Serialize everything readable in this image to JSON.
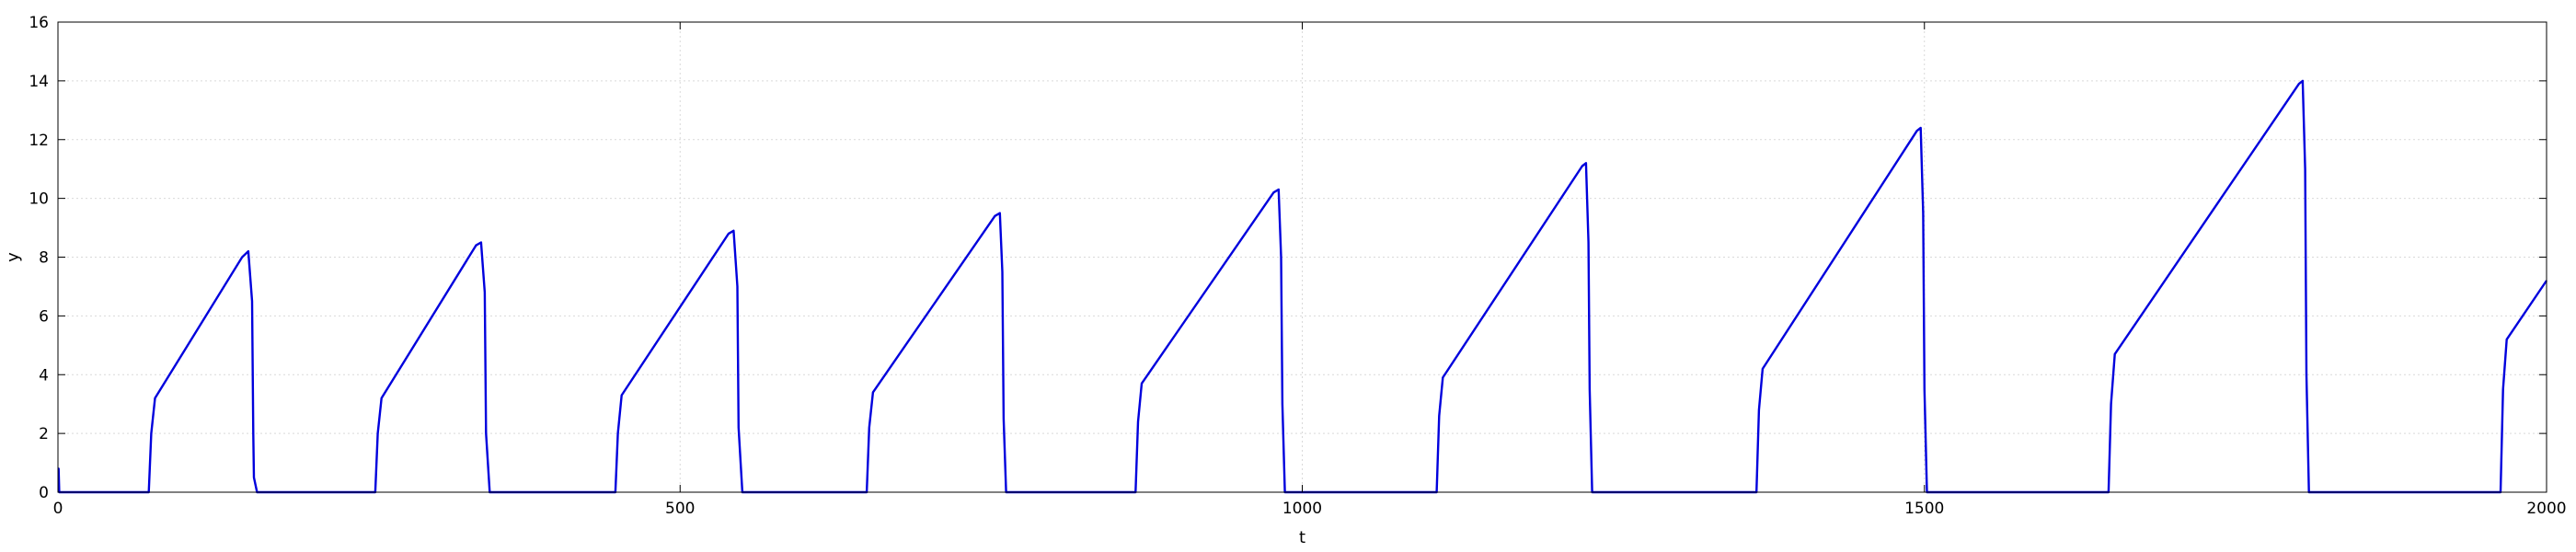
{
  "chart_data": {
    "type": "line",
    "title": "",
    "xlabel": "t",
    "ylabel": "y",
    "xlim": [
      0,
      2000
    ],
    "ylim": [
      0,
      16
    ],
    "xticks": [
      0,
      500,
      1000,
      1500,
      2000
    ],
    "yticks": [
      0,
      2,
      4,
      6,
      8,
      10,
      12,
      14,
      16
    ],
    "grid": true,
    "legend": "none",
    "series": [
      {
        "color": "#0000dd",
        "x": [
          0,
          0.5,
          1,
          73,
          75,
          78,
          148,
          153,
          156,
          157,
          157.5,
          160,
          255,
          257,
          260,
          336,
          340,
          343,
          344,
          347,
          448,
          450,
          453,
          539,
          543,
          546,
          547,
          550,
          650,
          652,
          655,
          753,
          757,
          759,
          760,
          762,
          866,
          868,
          871,
          977,
          981,
          983,
          984,
          986,
          1108,
          1110,
          1113,
          1225,
          1228,
          1230,
          1231,
          1233,
          1365,
          1367,
          1370,
          1494,
          1497,
          1499,
          1500,
          1502,
          1648,
          1650,
          1653,
          1801,
          1804,
          1806,
          1807,
          1809,
          1963,
          1965,
          1968,
          2000
        ],
        "y": [
          0.8,
          0.8,
          0,
          0,
          2.0,
          3.2,
          8.0,
          8.2,
          6.5,
          2.0,
          0.5,
          0,
          0,
          2.0,
          3.2,
          8.4,
          8.5,
          6.8,
          2.0,
          0,
          0,
          2.0,
          3.3,
          8.8,
          8.9,
          7.0,
          2.2,
          0,
          0,
          2.2,
          3.4,
          9.4,
          9.5,
          7.5,
          2.5,
          0,
          0,
          2.4,
          3.7,
          10.2,
          10.3,
          8.0,
          3.0,
          0,
          0,
          2.6,
          3.9,
          11.1,
          11.2,
          8.5,
          3.5,
          0,
          0,
          2.8,
          4.2,
          12.3,
          12.4,
          9.5,
          3.5,
          0,
          0,
          3.0,
          4.7,
          13.9,
          14.0,
          11.0,
          4.0,
          0,
          0,
          3.5,
          5.2,
          7.2
        ]
      }
    ]
  }
}
